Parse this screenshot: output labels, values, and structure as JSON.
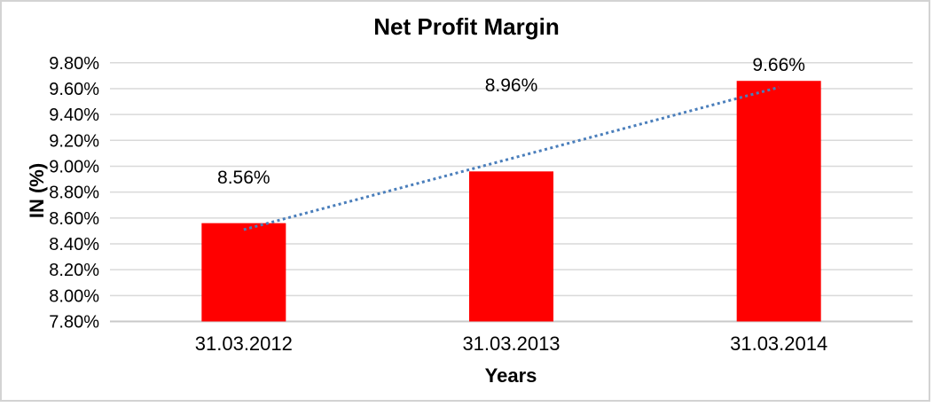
{
  "chart_data": {
    "type": "bar",
    "title": "Net Profit Margin",
    "xlabel": "Years",
    "ylabel": "IN (%)",
    "categories": [
      "31.03.2012",
      "31.03.2013",
      "31.03.2014"
    ],
    "series": [
      {
        "name": "Net Profit Margin",
        "values": [
          8.56,
          8.96,
          9.66
        ]
      }
    ],
    "data_labels": [
      "8.56%",
      "8.96%",
      "9.66%"
    ],
    "y_tick_labels": [
      "9.80%",
      "9.60%",
      "9.40%",
      "9.20%",
      "9.00%",
      "8.80%",
      "8.60%",
      "8.40%",
      "8.20%",
      "8.00%",
      "7.80%"
    ],
    "ylim": [
      7.8,
      9.8
    ],
    "y_tick_step": 0.2,
    "grid": true,
    "legend": "none",
    "trendline": {
      "type": "linear",
      "style": "dotted",
      "color": "#4A7EBB",
      "start_value": 8.51,
      "end_value": 9.61
    },
    "colors": {
      "bar": "#FF0000",
      "gridline": "#D9D9D9",
      "axis_line": "#C9C9C9",
      "text": "#000000",
      "frame_border": "#D3D3D3",
      "background": "#FFFFFF"
    }
  }
}
